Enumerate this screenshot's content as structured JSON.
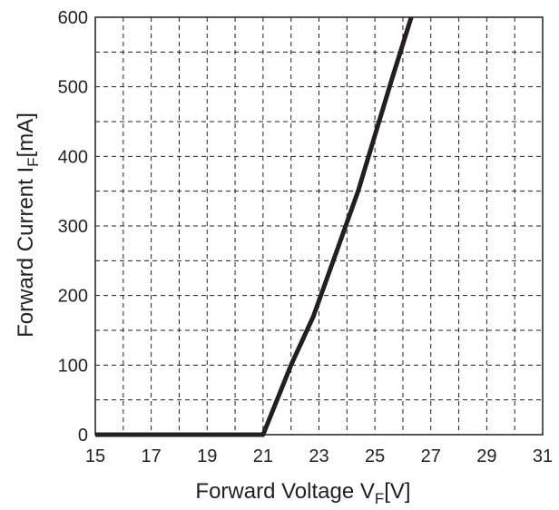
{
  "chart_data": {
    "type": "line",
    "title": "",
    "xlabel": {
      "main": "Forward Voltage V",
      "sub": "F",
      "unit": "[V]"
    },
    "ylabel": {
      "main": "Forward Current I",
      "sub": "F",
      "unit": "[mA]"
    },
    "xlim": [
      15,
      31
    ],
    "ylim": [
      0,
      600
    ],
    "x_ticks": [
      "15",
      "17",
      "19",
      "21",
      "23",
      "25",
      "27",
      "29",
      "31"
    ],
    "y_ticks": [
      "0",
      "100",
      "200",
      "300",
      "400",
      "500",
      "600"
    ],
    "x_grid_step": 1,
    "y_grid_step": 50,
    "grid": "dashed",
    "legend": "none",
    "series": [
      {
        "color": "#231f20",
        "x": [
          15,
          21,
          21.5,
          22,
          22.8,
          23.6,
          24.4,
          25,
          25.6,
          26.3
        ],
        "y": [
          0,
          0,
          50,
          100,
          170,
          260,
          350,
          430,
          510,
          600
        ]
      }
    ]
  }
}
